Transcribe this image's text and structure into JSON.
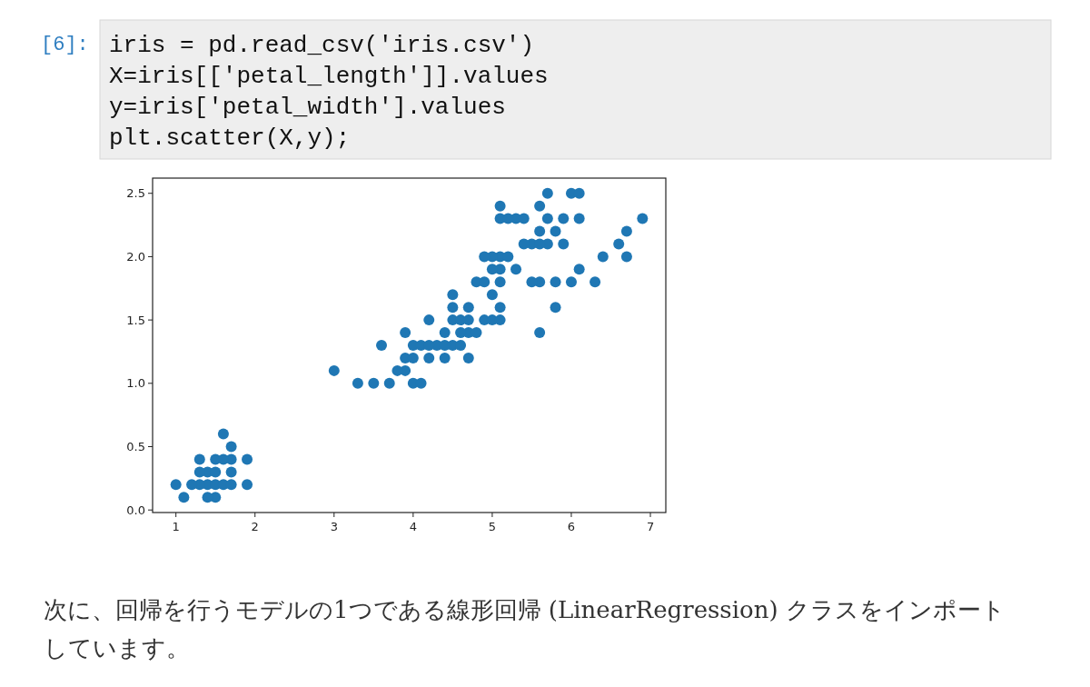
{
  "chart_data": {
    "type": "scatter",
    "marker": "circle",
    "grid": false,
    "x": [
      1.4,
      1.3,
      1.5,
      1.7,
      1.4,
      1.5,
      1.6,
      1.4,
      1.1,
      1.2,
      1.5,
      1.3,
      1.7,
      1.5,
      1.7,
      1.0,
      1.7,
      1.9,
      1.6,
      1.3,
      1.6,
      1.9,
      4.7,
      4.5,
      4.9,
      4.0,
      4.6,
      4.5,
      4.7,
      3.3,
      4.6,
      3.9,
      3.5,
      4.2,
      4.0,
      3.6,
      4.4,
      4.1,
      3.9,
      4.8,
      4.7,
      4.3,
      4.8,
      5.0,
      3.8,
      3.7,
      3.9,
      5.1,
      4.5,
      4.7,
      4.4,
      4.1,
      4.4,
      4.6,
      4.0,
      4.2,
      4.2,
      3.0,
      6.0,
      5.1,
      5.9,
      5.6,
      5.8,
      6.6,
      4.5,
      6.3,
      5.8,
      6.1,
      5.1,
      5.3,
      5.5,
      5.0,
      5.1,
      5.3,
      5.5,
      6.7,
      6.9,
      5.0,
      5.7,
      4.9,
      6.7,
      4.9,
      5.7,
      6.0,
      5.6,
      5.8,
      6.1,
      6.4,
      5.6,
      5.1,
      5.6,
      6.1,
      5.6,
      5.4,
      5.1,
      5.9,
      5.7,
      5.2,
      5.0,
      5.2,
      5.4,
      5.1
    ],
    "series": [
      {
        "color": "#1f77b4",
        "values": [
          0.2,
          0.2,
          0.2,
          0.4,
          0.3,
          0.1,
          0.2,
          0.1,
          0.1,
          0.2,
          0.4,
          0.4,
          0.3,
          0.3,
          0.2,
          0.2,
          0.5,
          0.2,
          0.4,
          0.3,
          0.6,
          0.4,
          1.4,
          1.5,
          1.5,
          1.3,
          1.5,
          1.3,
          1.6,
          1.0,
          1.3,
          1.4,
          1.0,
          1.5,
          1.0,
          1.3,
          1.4,
          1.0,
          1.1,
          1.8,
          1.2,
          1.3,
          1.4,
          1.7,
          1.1,
          1.0,
          1.2,
          1.6,
          1.6,
          1.5,
          1.3,
          1.3,
          1.2,
          1.4,
          1.2,
          1.3,
          1.2,
          1.1,
          2.5,
          1.9,
          2.1,
          1.8,
          2.2,
          2.1,
          1.7,
          1.8,
          1.8,
          2.5,
          2.0,
          1.9,
          2.1,
          2.0,
          2.4,
          2.3,
          1.8,
          2.2,
          2.3,
          1.5,
          2.3,
          2.0,
          2.0,
          1.8,
          2.1,
          1.8,
          2.1,
          1.6,
          1.9,
          2.0,
          2.2,
          1.5,
          1.4,
          2.3,
          2.4,
          2.1,
          2.3,
          2.3,
          2.5,
          2.3,
          1.9,
          2.0,
          2.3,
          1.8
        ]
      }
    ],
    "xlim": [
      0.705,
      7.195
    ],
    "xticks": [
      1,
      2,
      3,
      4,
      5,
      6,
      7
    ],
    "ylim": [
      -0.02,
      2.62
    ],
    "yticks": [
      {
        "value": 0,
        "label": "0.0"
      },
      {
        "value": 0.5,
        "label": "0.5"
      },
      {
        "value": 1,
        "label": "1.0"
      },
      {
        "value": 1.5,
        "label": "1.5"
      },
      {
        "value": 2,
        "label": "2.0"
      },
      {
        "value": 2.5,
        "label": "2.5"
      }
    ],
    "annotations": [
      "[6]:",
      "iris = pd.read_csv('iris.csv')",
      "X=iris[['petal_length']].values",
      "y=iris['petal_width'].values",
      "plt.scatter(X,y);",
      "次に、回帰を行うモデルの1つである線形回帰 (LinearRegression) クラスをインポートしています。"
    ]
  }
}
